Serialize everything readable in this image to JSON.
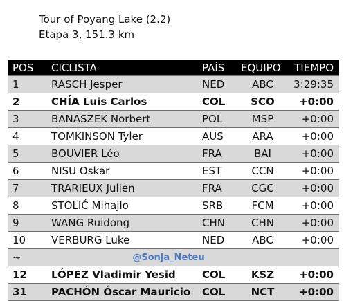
{
  "title": "Tour of Poyang Lake (2.2)",
  "subtitle": "Etapa 3, 151.3 km",
  "headers": {
    "pos": "POS",
    "rider": "CICLISTA",
    "country": "PAÍS",
    "team": "EQUIPO",
    "time": "TIEMPO"
  },
  "rows": [
    {
      "pos": "1",
      "rider": "RASCH Jesper",
      "country": "NED",
      "team": "ABC",
      "time": "3:29:35"
    },
    {
      "pos": "2",
      "rider": "CHÍA Luis Carlos",
      "country": "COL",
      "team": "SCO",
      "time": "+0:00"
    },
    {
      "pos": "3",
      "rider": "BANASZEK Norbert",
      "country": "POL",
      "team": "MSP",
      "time": "+0:00"
    },
    {
      "pos": "4",
      "rider": "TOMKINSON Tyler",
      "country": "AUS",
      "team": "ARA",
      "time": "+0:00"
    },
    {
      "pos": "5",
      "rider": "BOUVIER Léo",
      "country": "FRA",
      "team": "BAI",
      "time": "+0:00"
    },
    {
      "pos": "6",
      "rider": "NISU Oskar",
      "country": "EST",
      "team": "CCN",
      "time": "+0:00"
    },
    {
      "pos": "7",
      "rider": "TRARIEUX Julien",
      "country": "FRA",
      "team": "CGC",
      "time": "+0:00"
    },
    {
      "pos": "8",
      "rider": "STOLIĆ Mihajlo",
      "country": "SRB",
      "team": "FCM",
      "time": "+0:00"
    },
    {
      "pos": "9",
      "rider": "WANG Ruidong",
      "country": "CHN",
      "team": "CHN",
      "time": "+0:00"
    },
    {
      "pos": "10",
      "rider": "VERBURG Luke",
      "country": "NED",
      "team": "ABC",
      "time": "+0:00"
    }
  ],
  "separator": {
    "symbol": "~",
    "credit": "@Sonja_Neteu"
  },
  "extra_rows": [
    {
      "pos": "12",
      "rider": "LÓPEZ Vladimir Yesid",
      "country": "COL",
      "team": "KSZ",
      "time": "+0:00"
    },
    {
      "pos": "31",
      "rider": "PACHÓN Óscar Mauricio",
      "country": "COL",
      "team": "NCT",
      "time": "+0:00"
    }
  ]
}
